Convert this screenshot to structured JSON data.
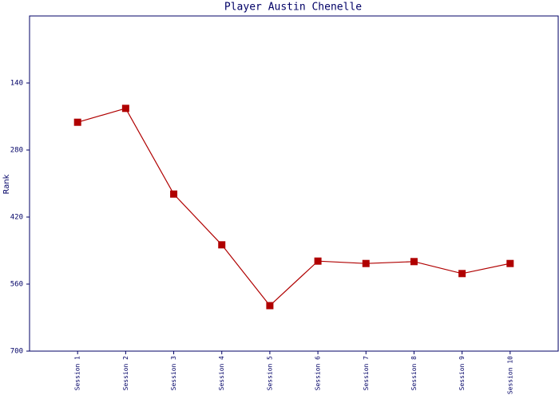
{
  "chart_data": {
    "type": "line",
    "title": "Player Austin Chenelle",
    "y_label": "Rank",
    "categories": [
      "Session 1",
      "Session 2",
      "Session 3",
      "Session 4",
      "Session 5",
      "Session 6",
      "Session 7",
      "Session 8",
      "Session 9",
      "Session 10"
    ],
    "series": [
      {
        "name": "Rank",
        "color": "#b00000",
        "values": [
          222,
          193,
          372,
          478,
          605,
          512,
          517,
          513,
          538,
          517
        ]
      }
    ],
    "ylim": [
      0,
      700
    ],
    "y_inverted": true,
    "yticks": [
      140,
      280,
      420,
      560,
      700
    ],
    "axis_color": "#000066"
  }
}
